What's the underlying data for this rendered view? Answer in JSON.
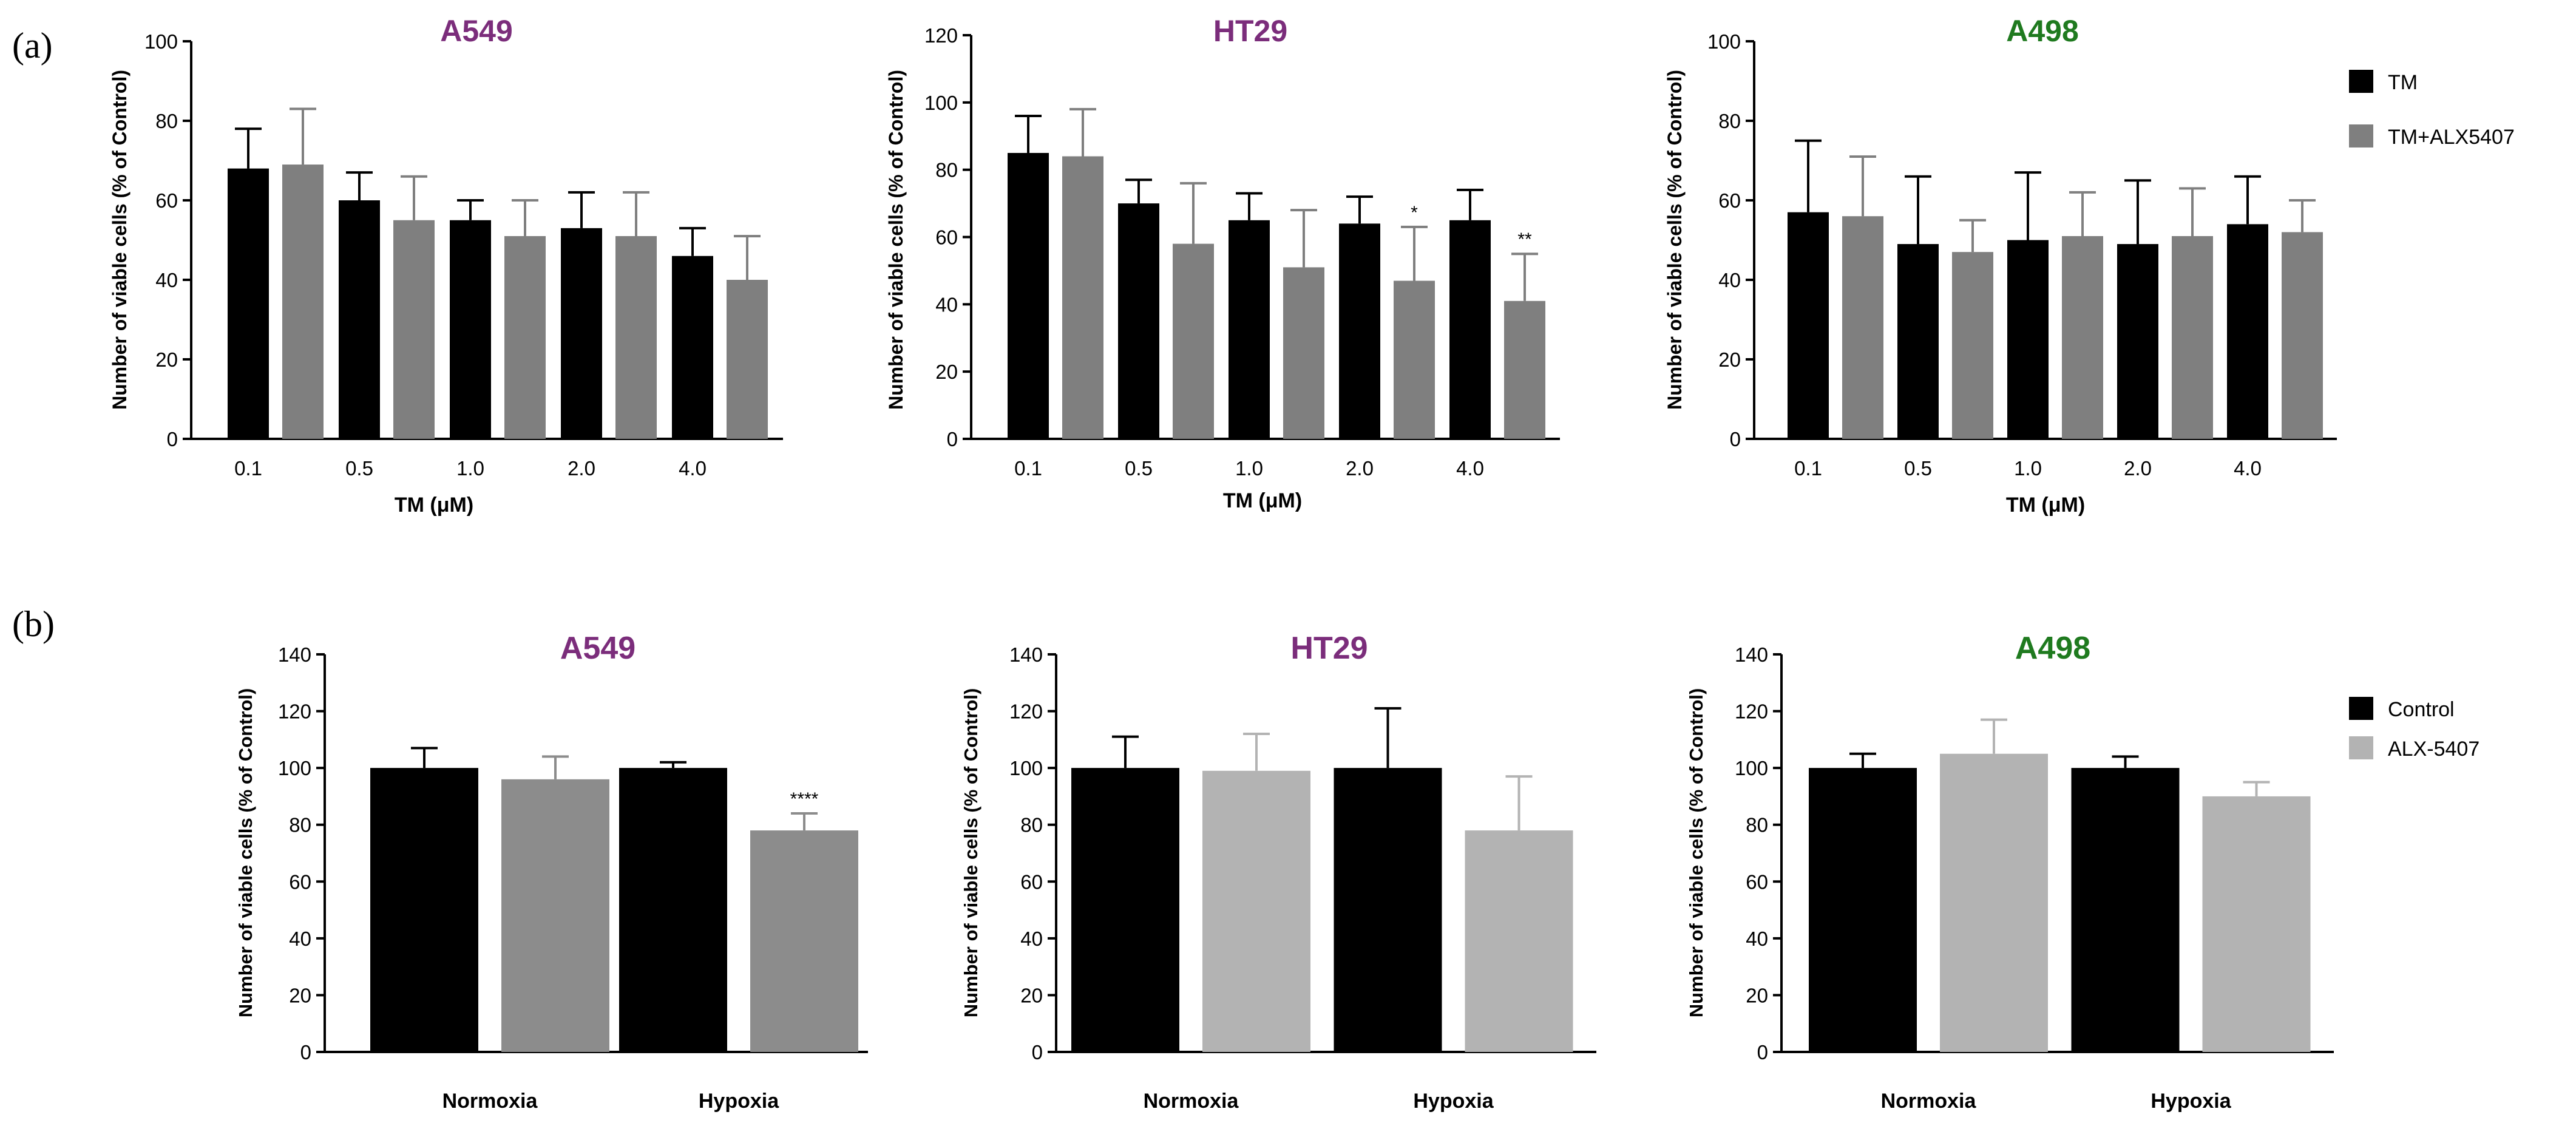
{
  "panel_labels": [
    "(a)",
    "(b)"
  ],
  "colors": {
    "tm": "#000000",
    "tm_alx": "#7f7f7f",
    "control": "#000000",
    "alx_dark": "#8c8c8c",
    "alx_light": "#b3b3b3",
    "purple": "#7b2d7b",
    "green": "#1f7a1f"
  },
  "legend_a": [
    {
      "label": "TM",
      "color": "#000000"
    },
    {
      "label": "TM+ALX5407",
      "color": "#7f7f7f"
    }
  ],
  "legend_b": [
    {
      "label": "Control",
      "color": "#000000"
    },
    {
      "label": "ALX-5407",
      "color": "#b3b3b3"
    }
  ],
  "chart_data": [
    {
      "type": "bar",
      "title": "A549",
      "title_color": "#7b2d7b",
      "xlabel": "TM (μM)",
      "ylabel": "Number of viable cells (% of Control)",
      "ylim": [
        0,
        100
      ],
      "yticks": [
        "0",
        "20",
        "40",
        "60",
        "80",
        "100"
      ],
      "categories": [
        "0.1",
        "0.5",
        "1.0",
        "2.0",
        "4.0"
      ],
      "series": [
        {
          "name": "TM",
          "color": "#000000",
          "values": [
            68,
            60,
            55,
            53,
            46
          ],
          "errors": [
            10,
            7,
            5,
            9,
            7
          ]
        },
        {
          "name": "TM+ALX5407",
          "color": "#7f7f7f",
          "values": [
            69,
            55,
            51,
            51,
            40
          ],
          "errors": [
            14,
            11,
            9,
            11,
            11
          ]
        }
      ],
      "significance": []
    },
    {
      "type": "bar",
      "title": "HT29",
      "title_color": "#7b2d7b",
      "xlabel": "TM (μM)",
      "ylabel": "Number of viable cells (% of Control)",
      "ylim": [
        0,
        120
      ],
      "yticks": [
        "0",
        "20",
        "40",
        "60",
        "80",
        "100",
        "120"
      ],
      "categories": [
        "0.1",
        "0.5",
        "1.0",
        "2.0",
        "4.0"
      ],
      "series": [
        {
          "name": "TM",
          "color": "#000000",
          "values": [
            85,
            70,
            65,
            64,
            65
          ],
          "errors": [
            11,
            7,
            8,
            8,
            9
          ]
        },
        {
          "name": "TM+ALX5407",
          "color": "#7f7f7f",
          "values": [
            84,
            58,
            51,
            47,
            41
          ],
          "errors": [
            14,
            18,
            17,
            16,
            14
          ]
        }
      ],
      "significance": [
        {
          "category": 3,
          "series": 1,
          "label": "*"
        },
        {
          "category": 4,
          "series": 1,
          "label": "**"
        }
      ]
    },
    {
      "type": "bar",
      "title": "A498",
      "title_color": "#1f7a1f",
      "xlabel": "TM (μM)",
      "ylabel": "Number of viable cells (% of Control)",
      "ylim": [
        0,
        100
      ],
      "yticks": [
        "0",
        "20",
        "40",
        "60",
        "80",
        "100"
      ],
      "categories": [
        "0.1",
        "0.5",
        "1.0",
        "2.0",
        "4.0"
      ],
      "series": [
        {
          "name": "TM",
          "color": "#000000",
          "values": [
            57,
            49,
            50,
            49,
            54
          ],
          "errors": [
            18,
            17,
            17,
            16,
            12
          ]
        },
        {
          "name": "TM+ALX5407",
          "color": "#7f7f7f",
          "values": [
            56,
            47,
            51,
            51,
            52
          ],
          "errors": [
            15,
            8,
            11,
            12,
            8
          ]
        }
      ],
      "significance": []
    },
    {
      "type": "bar",
      "title": "A549",
      "title_color": "#7b2d7b",
      "xlabel": "",
      "ylabel": "Number of viable cells (% of Control)",
      "ylim": [
        0,
        140
      ],
      "yticks": [
        "0",
        "20",
        "40",
        "60",
        "80",
        "100",
        "120",
        "140"
      ],
      "categories": [
        "Normoxia",
        "Hypoxia"
      ],
      "series": [
        {
          "name": "Control",
          "color": "#000000",
          "values": [
            100,
            100
          ],
          "errors": [
            7,
            2
          ]
        },
        {
          "name": "ALX-5407",
          "color": "#8c8c8c",
          "values": [
            96,
            78
          ],
          "errors": [
            8,
            6
          ]
        }
      ],
      "significance": [
        {
          "category": 1,
          "series": 1,
          "label": "****"
        }
      ]
    },
    {
      "type": "bar",
      "title": "HT29",
      "title_color": "#7b2d7b",
      "xlabel": "",
      "ylabel": "Number of viable cells (% of Control)",
      "ylim": [
        0,
        140
      ],
      "yticks": [
        "0",
        "20",
        "40",
        "60",
        "80",
        "100",
        "120",
        "140"
      ],
      "categories": [
        "Normoxia",
        "Hypoxia"
      ],
      "series": [
        {
          "name": "Control",
          "color": "#000000",
          "values": [
            100,
            100
          ],
          "errors": [
            11,
            21
          ]
        },
        {
          "name": "ALX-5407",
          "color": "#b3b3b3",
          "values": [
            99,
            78
          ],
          "errors": [
            13,
            19
          ]
        }
      ],
      "significance": []
    },
    {
      "type": "bar",
      "title": "A498",
      "title_color": "#1f7a1f",
      "xlabel": "",
      "ylabel": "Number of viable cells (% of Control)",
      "ylim": [
        0,
        140
      ],
      "yticks": [
        "0",
        "20",
        "40",
        "60",
        "80",
        "100",
        "120",
        "140"
      ],
      "categories": [
        "Normoxia",
        "Hypoxia"
      ],
      "series": [
        {
          "name": "Control",
          "color": "#000000",
          "values": [
            100,
            100
          ],
          "errors": [
            5,
            4
          ]
        },
        {
          "name": "ALX-5407",
          "color": "#b3b3b3",
          "values": [
            105,
            90
          ],
          "errors": [
            12,
            5
          ]
        }
      ],
      "significance": []
    }
  ]
}
